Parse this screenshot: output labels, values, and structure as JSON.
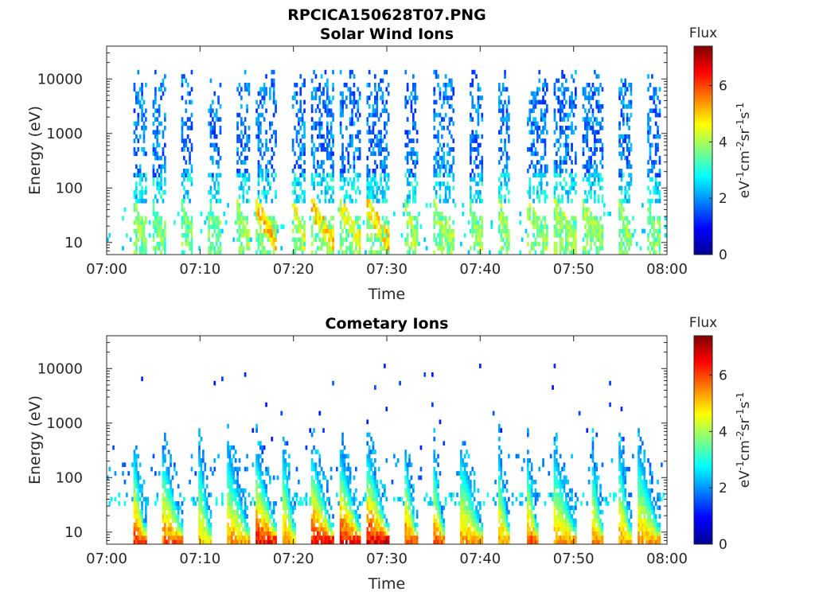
{
  "figure": {
    "title": "RPCICA150628T07.PNG"
  },
  "chart_data": [
    {
      "type": "heatmap",
      "title": "Solar Wind Ions",
      "xlabel": "Time",
      "ylabel": "Energy (eV)",
      "x_ticks": [
        "07:00",
        "07:10",
        "07:20",
        "07:30",
        "07:40",
        "07:50",
        "08:00"
      ],
      "xlim": [
        "07:00",
        "08:00"
      ],
      "y_scale": "log",
      "y_ticks": [
        "10",
        "100",
        "1000",
        "10000"
      ],
      "ylim": [
        6,
        40000
      ],
      "colorbar": {
        "title": "Flux",
        "label": "eV-1cm-2sr-1s-1",
        "ticks": [
          "0",
          "2",
          "4",
          "6"
        ],
        "range": [
          0,
          7.4
        ],
        "colormap": "jet"
      },
      "bursts": [
        {
          "start": "07:03",
          "end": "07:04",
          "low_energy_peak": 4.5
        },
        {
          "start": "07:05",
          "end": "07:06",
          "low_energy_peak": 4.0
        },
        {
          "start": "07:08",
          "end": "07:09",
          "low_energy_peak": 4.0
        },
        {
          "start": "07:11",
          "end": "07:12",
          "low_energy_peak": 4.0
        },
        {
          "start": "07:14",
          "end": "07:15",
          "low_energy_peak": 4.5
        },
        {
          "start": "07:16",
          "end": "07:18",
          "low_energy_peak": 5.5
        },
        {
          "start": "07:20",
          "end": "07:21",
          "low_energy_peak": 5.0
        },
        {
          "start": "07:22",
          "end": "07:24",
          "low_energy_peak": 5.5
        },
        {
          "start": "07:25",
          "end": "07:27",
          "low_energy_peak": 5.0
        },
        {
          "start": "07:28",
          "end": "07:30",
          "low_energy_peak": 5.5
        },
        {
          "start": "07:32",
          "end": "07:33",
          "low_energy_peak": 4.5
        },
        {
          "start": "07:35",
          "end": "07:37",
          "low_energy_peak": 4.5
        },
        {
          "start": "07:39",
          "end": "07:40",
          "low_energy_peak": 4.5
        },
        {
          "start": "07:42",
          "end": "07:43",
          "low_energy_peak": 4.5
        },
        {
          "start": "07:45",
          "end": "07:47",
          "low_energy_peak": 4.5
        },
        {
          "start": "07:48",
          "end": "07:50",
          "low_energy_peak": 4.5
        },
        {
          "start": "07:51",
          "end": "07:53",
          "low_energy_peak": 4.5
        },
        {
          "start": "07:55",
          "end": "07:56",
          "low_energy_peak": 4.5
        },
        {
          "start": "07:58",
          "end": "07:59",
          "low_energy_peak": 4.0
        }
      ]
    },
    {
      "type": "heatmap",
      "title": "Cometary Ions",
      "xlabel": "Time",
      "ylabel": "Energy (eV)",
      "x_ticks": [
        "07:00",
        "07:10",
        "07:20",
        "07:30",
        "07:40",
        "07:50",
        "08:00"
      ],
      "xlim": [
        "07:00",
        "08:00"
      ],
      "y_scale": "log",
      "y_ticks": [
        "10",
        "100",
        "1000",
        "10000"
      ],
      "ylim": [
        6,
        40000
      ],
      "colorbar": {
        "title": "Flux",
        "label": "eV-1cm-2sr-1s-1",
        "ticks": [
          "0",
          "2",
          "4",
          "6"
        ],
        "range": [
          0,
          7.4
        ],
        "colormap": "jet"
      },
      "bursts": [
        {
          "start": "07:03",
          "end": "07:04",
          "low_energy_peak": 6.8
        },
        {
          "start": "07:06",
          "end": "07:08",
          "low_energy_peak": 6.5
        },
        {
          "start": "07:10",
          "end": "07:11",
          "low_energy_peak": 5.5
        },
        {
          "start": "07:13",
          "end": "07:15",
          "low_energy_peak": 6.0
        },
        {
          "start": "07:16",
          "end": "07:18",
          "low_energy_peak": 7.2
        },
        {
          "start": "07:19",
          "end": "07:20",
          "low_energy_peak": 6.0
        },
        {
          "start": "07:22",
          "end": "07:24",
          "low_energy_peak": 7.2
        },
        {
          "start": "07:25",
          "end": "07:27",
          "low_energy_peak": 7.2
        },
        {
          "start": "07:28",
          "end": "07:30",
          "low_energy_peak": 7.4
        },
        {
          "start": "07:32",
          "end": "07:33",
          "low_energy_peak": 6.5
        },
        {
          "start": "07:35",
          "end": "07:36",
          "low_energy_peak": 6.5
        },
        {
          "start": "07:38",
          "end": "07:40",
          "low_energy_peak": 6.0
        },
        {
          "start": "07:42",
          "end": "07:43",
          "low_energy_peak": 6.0
        },
        {
          "start": "07:45",
          "end": "07:46",
          "low_energy_peak": 6.8
        },
        {
          "start": "07:48",
          "end": "07:50",
          "low_energy_peak": 6.0
        },
        {
          "start": "07:52",
          "end": "07:53",
          "low_energy_peak": 6.0
        },
        {
          "start": "07:55",
          "end": "07:56",
          "low_energy_peak": 6.0
        },
        {
          "start": "07:57",
          "end": "07:59",
          "low_energy_peak": 6.0
        }
      ]
    }
  ]
}
